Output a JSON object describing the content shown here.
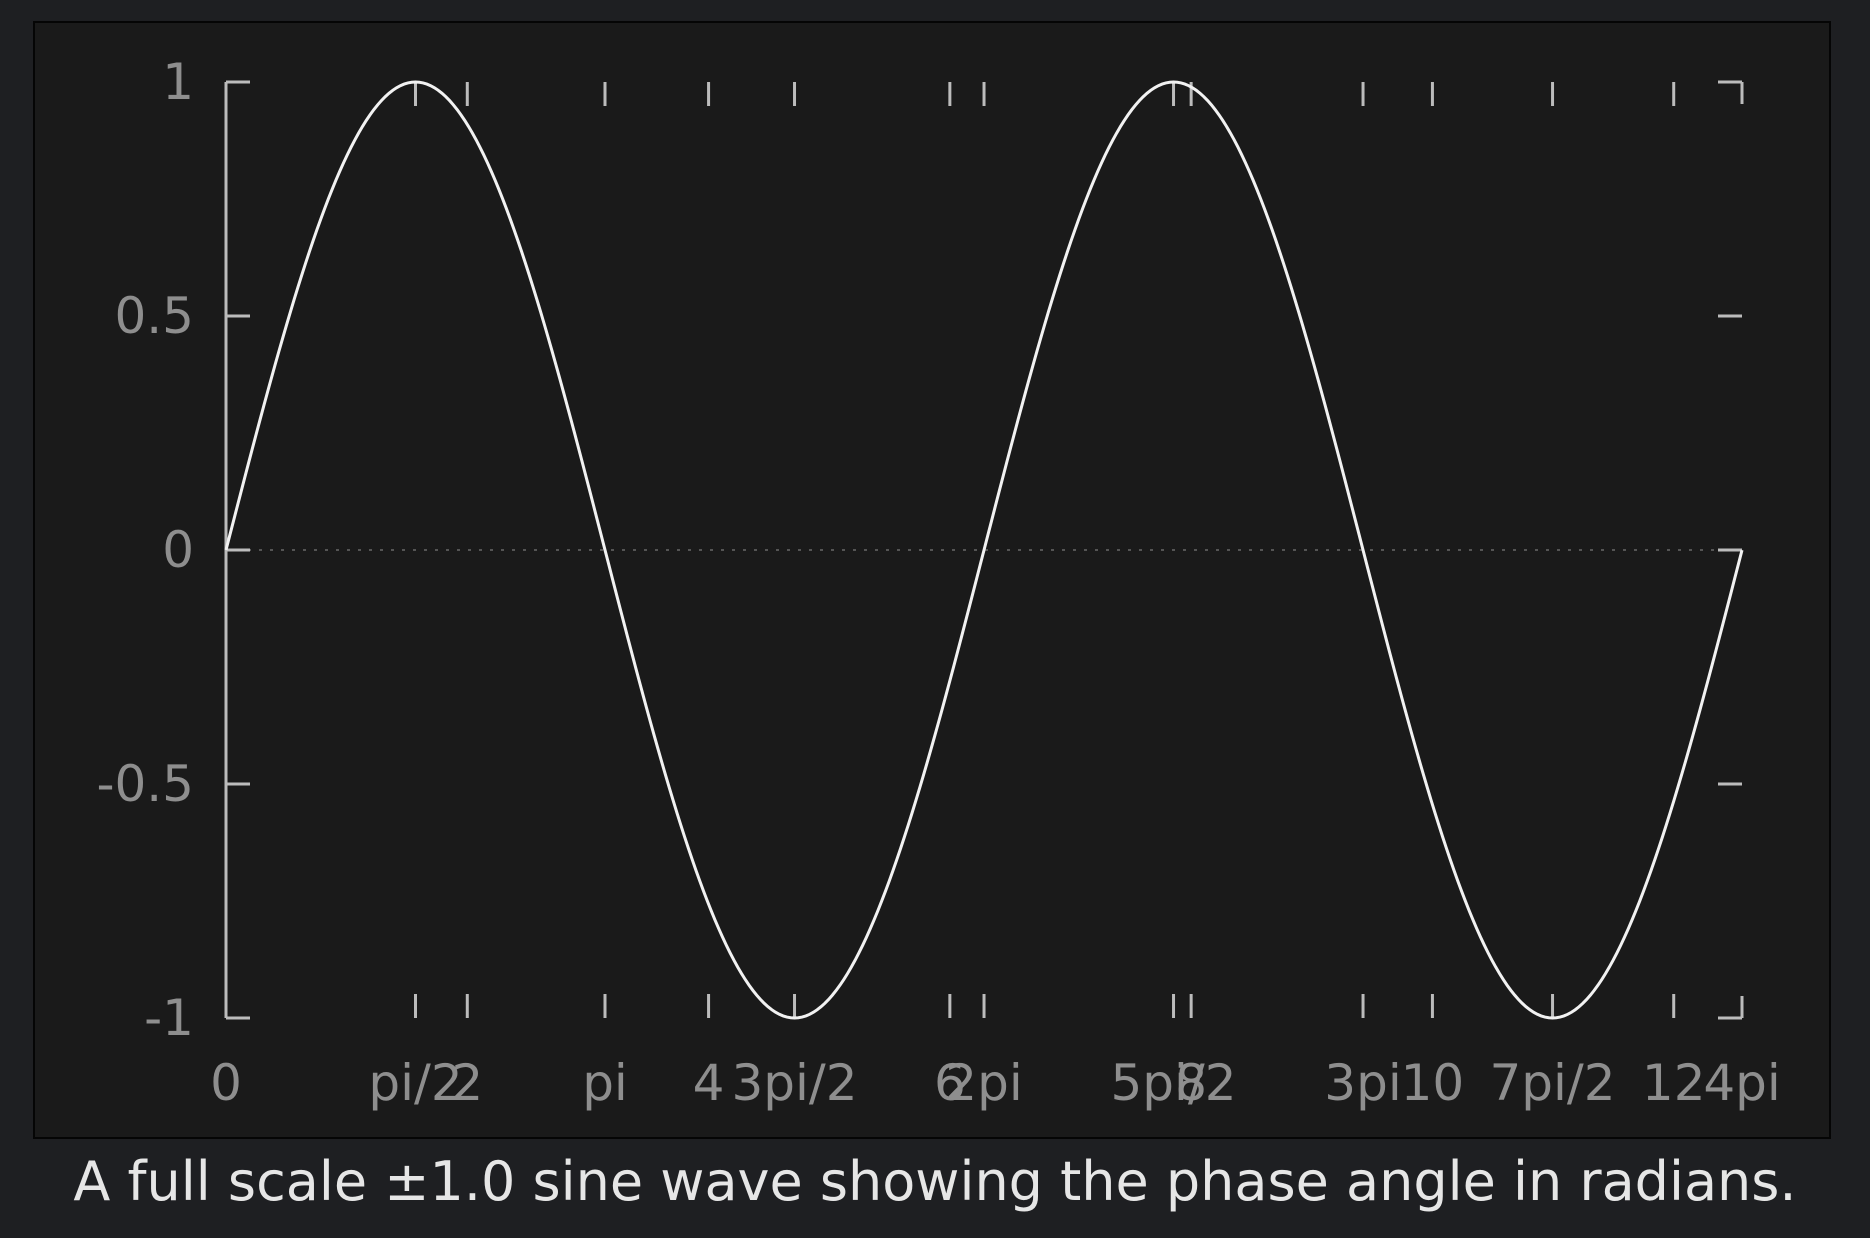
{
  "chart_data": {
    "type": "line",
    "title": "",
    "xlabel": "",
    "ylabel": "",
    "xlim": [
      0,
      12.566
    ],
    "ylim": [
      -1,
      1
    ],
    "grid": false,
    "zero_line": "dotted",
    "legend": "none",
    "y_ticks": [
      {
        "value": 1,
        "label": "1"
      },
      {
        "value": 0.5,
        "label": "0.5"
      },
      {
        "value": 0,
        "label": "0"
      },
      {
        "value": -0.5,
        "label": "-0.5"
      },
      {
        "value": -1,
        "label": "-1"
      }
    ],
    "x_ticks": [
      {
        "value": 0,
        "label": "0"
      },
      {
        "value": 1.5708,
        "label": "pi/2"
      },
      {
        "value": 2,
        "label": "2"
      },
      {
        "value": 3.1416,
        "label": "pi"
      },
      {
        "value": 4,
        "label": "4"
      },
      {
        "value": 4.7124,
        "label": "3pi/2"
      },
      {
        "value": 6,
        "label": "6"
      },
      {
        "value": 6.2832,
        "label": "2pi"
      },
      {
        "value": 7.854,
        "label": "5pi/2"
      },
      {
        "value": 8,
        "label": "8"
      },
      {
        "value": 9.4248,
        "label": "3pi"
      },
      {
        "value": 10,
        "label": "10"
      },
      {
        "value": 10.9956,
        "label": "7pi/2"
      },
      {
        "value": 12,
        "label": "12"
      },
      {
        "value": 12.5664,
        "label": "4pi"
      }
    ],
    "series": [
      {
        "function": "sin(x)",
        "color": "#f2f2f2",
        "x": [
          0,
          0.7854,
          1.5708,
          2.3562,
          3.1416,
          3.927,
          4.7124,
          5.4978,
          6.2832,
          7.0686,
          7.854,
          8.6394,
          9.4248,
          10.2102,
          10.9956,
          11.781,
          12.5664
        ],
        "y": [
          0,
          0.707,
          1,
          0.707,
          0,
          -0.707,
          -1,
          -0.707,
          0,
          0.707,
          1,
          0.707,
          0,
          -0.707,
          -1,
          -0.707,
          0
        ]
      }
    ]
  },
  "caption": "A full scale ±1.0 sine wave showing the phase angle in radians.",
  "colors": {
    "page_background": "#1e1f22",
    "plot_background": "#1a1a1a",
    "axis": "#bcbcbc",
    "tick_label": "#8e8e8e",
    "curve": "#f2f2f2",
    "caption": "#e6e6e6"
  }
}
